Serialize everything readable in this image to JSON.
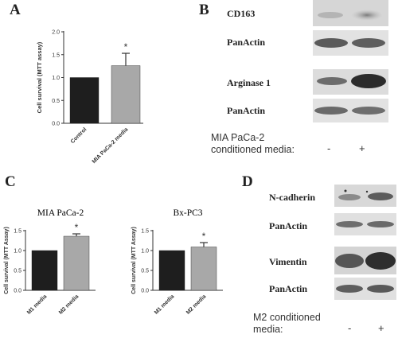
{
  "panels": {
    "a": "A",
    "b": "B",
    "c": "C",
    "d": "D"
  },
  "chart_data": [
    {
      "id": "A",
      "type": "bar",
      "title": "",
      "categories": [
        "Control",
        "MIA PaCa-2 media"
      ],
      "values": [
        1.0,
        1.26
      ],
      "errors": [
        0,
        0.27
      ],
      "significance": [
        "",
        "*"
      ],
      "ylabel": "Cell survival (MTT assay)",
      "xlabel": "",
      "ylim": [
        0.0,
        2.0
      ],
      "yticks": [
        "0.0",
        "0.5",
        "1.0",
        "1.5",
        "2.0"
      ],
      "colors": [
        "#1e1e1e",
        "#a8a8a8"
      ]
    },
    {
      "id": "C1",
      "type": "bar",
      "title": "MIA PaCa-2",
      "categories": [
        "M1 media",
        "M2 media"
      ],
      "values": [
        1.0,
        1.36
      ],
      "errors": [
        0,
        0.06
      ],
      "significance": [
        "",
        "*"
      ],
      "ylabel": "Cell survival (MTT Assay)",
      "xlabel": "",
      "ylim": [
        0.0,
        1.5
      ],
      "yticks": [
        "0.0",
        "0.5",
        "1.0",
        "1.5"
      ],
      "colors": [
        "#1e1e1e",
        "#a8a8a8"
      ]
    },
    {
      "id": "C2",
      "type": "bar",
      "title": "Bx-PC3",
      "categories": [
        "M1 media",
        "M2 media"
      ],
      "values": [
        1.0,
        1.09
      ],
      "errors": [
        0,
        0.11
      ],
      "significance": [
        "",
        "*"
      ],
      "ylabel": "Cell survival (MTT Assay)",
      "xlabel": "",
      "ylim": [
        0.0,
        1.5
      ],
      "yticks": [
        "0.0",
        "0.5",
        "1.0",
        "1.5"
      ],
      "colors": [
        "#1e1e1e",
        "#a8a8a8"
      ]
    }
  ],
  "blots_b": {
    "labels": [
      "CD163",
      "PanActin",
      "Arginase 1",
      "PanActin"
    ],
    "condition_label_1": "MIA PaCa-2",
    "condition_label_2": "conditioned media:",
    "minus": "-",
    "plus": "+"
  },
  "blots_d": {
    "labels": [
      "N-cadherin",
      "PanActin",
      "Vimentin",
      "PanActin"
    ],
    "condition_label_1": "M2 conditioned",
    "condition_label_2": "media:",
    "minus": "-",
    "plus": "+"
  }
}
